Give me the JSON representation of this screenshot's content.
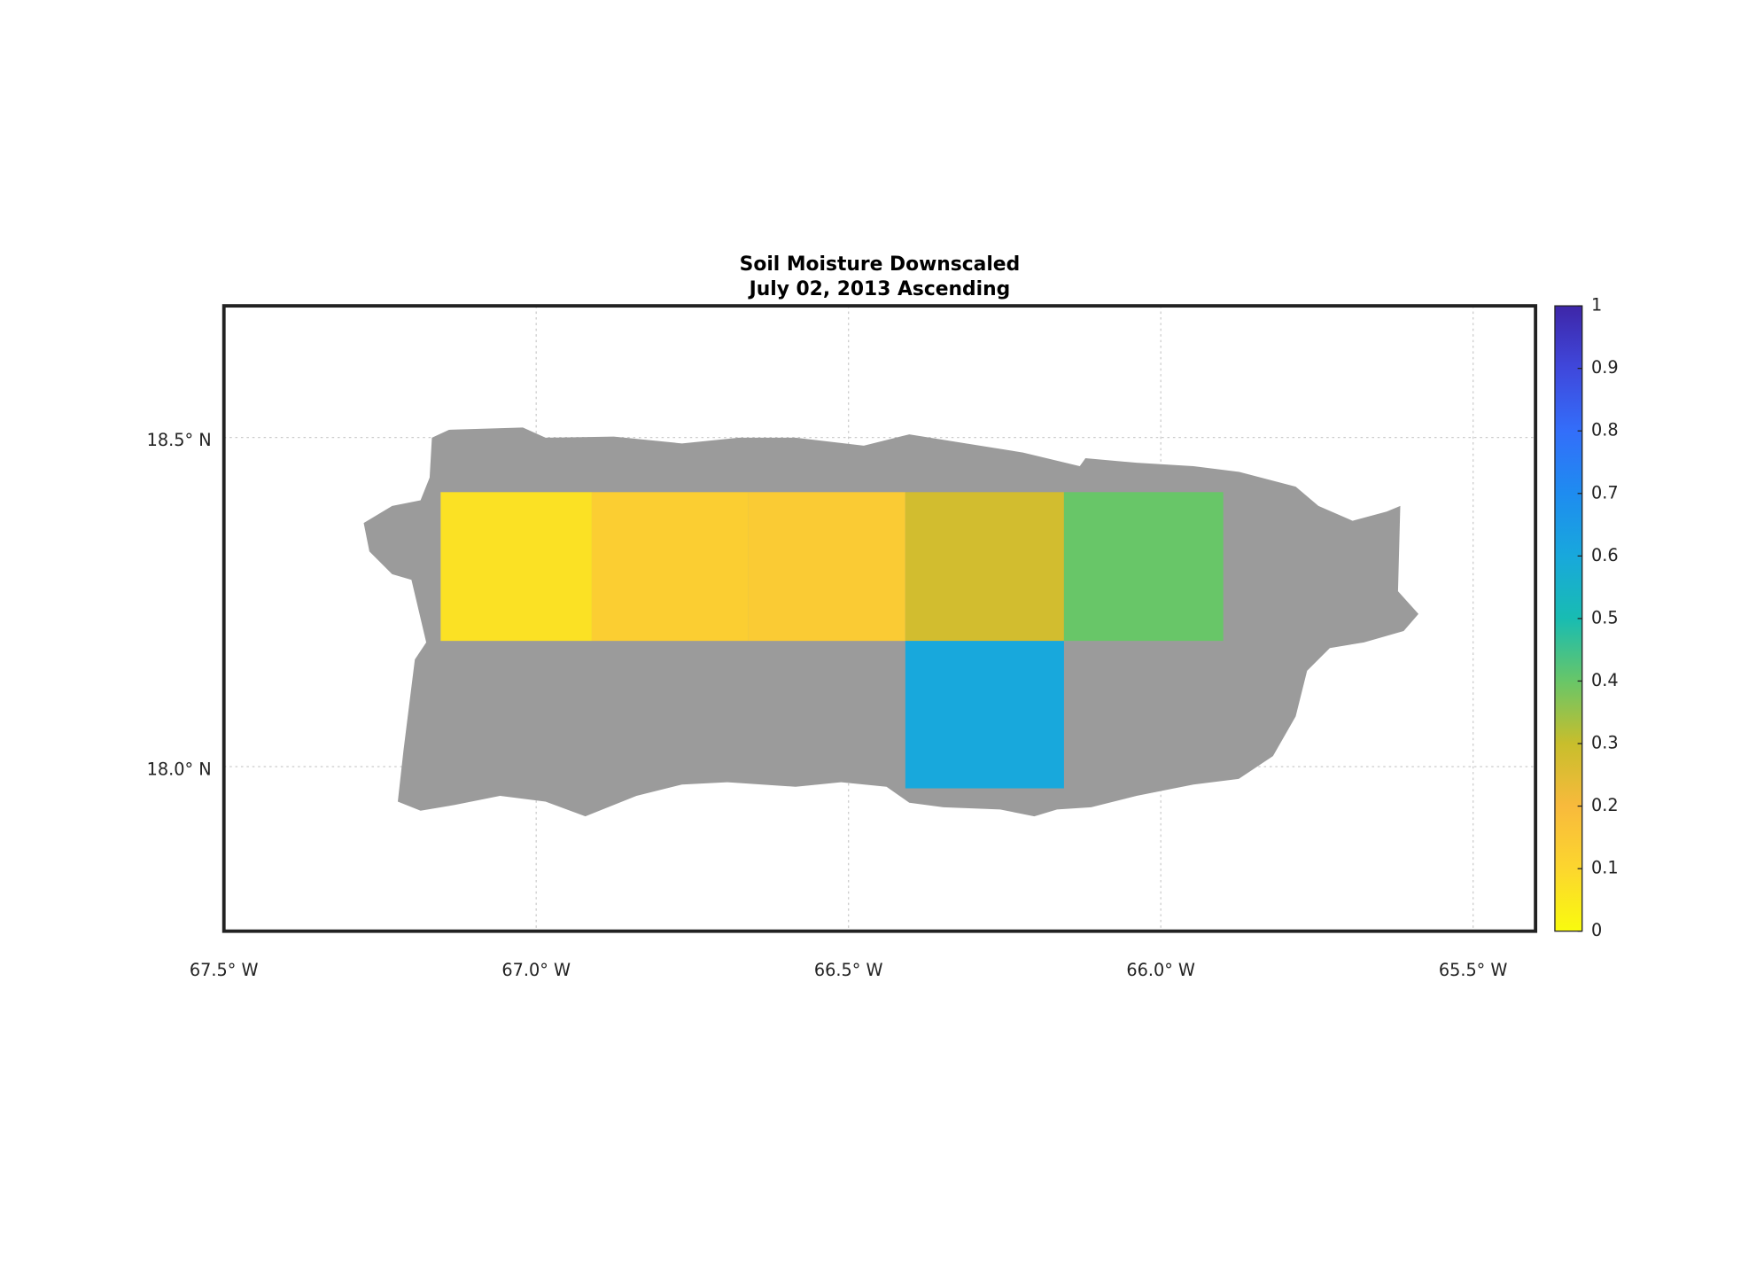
{
  "chart_data": {
    "type": "map",
    "title": "Soil Moisture Downscaled",
    "subtitle": "July 02, 2013 Ascending",
    "xlim": [
      -67.5,
      -65.4
    ],
    "ylim": [
      17.75,
      18.7
    ],
    "xticks": [
      {
        "value": -67.5,
        "label": "67.5° W"
      },
      {
        "value": -67.0,
        "label": "67.0° W"
      },
      {
        "value": -66.5,
        "label": "66.5° W"
      },
      {
        "value": -66.0,
        "label": "66.0° W"
      },
      {
        "value": -65.5,
        "label": "65.5° W"
      }
    ],
    "yticks": [
      {
        "value": 18.0,
        "label": "18.0° N"
      },
      {
        "value": 18.5,
        "label": "18.5° N"
      }
    ],
    "grid": true,
    "land_color": "#9b9b9b",
    "cells": [
      {
        "lon": [
          -67.153,
          -66.911
        ],
        "lat": [
          18.191,
          18.417
        ],
        "value": 0.07
      },
      {
        "lon": [
          -66.911,
          -66.66
        ],
        "lat": [
          18.191,
          18.417
        ],
        "value": 0.13
      },
      {
        "lon": [
          -66.66,
          -66.409
        ],
        "lat": [
          18.191,
          18.417
        ],
        "value": 0.14
      },
      {
        "lon": [
          -66.409,
          -66.155
        ],
        "lat": [
          18.191,
          18.417
        ],
        "value": 0.28
      },
      {
        "lon": [
          -66.155,
          -65.9
        ],
        "lat": [
          18.191,
          18.417
        ],
        "value": 0.4
      },
      {
        "lon": [
          -66.409,
          -66.155
        ],
        "lat": [
          17.967,
          18.191
        ],
        "value": 0.6
      }
    ],
    "clim": [
      0,
      1
    ],
    "cticks": [
      0,
      0.1,
      0.2,
      0.3,
      0.4,
      0.5,
      0.6,
      0.7,
      0.8,
      0.9,
      1
    ]
  }
}
